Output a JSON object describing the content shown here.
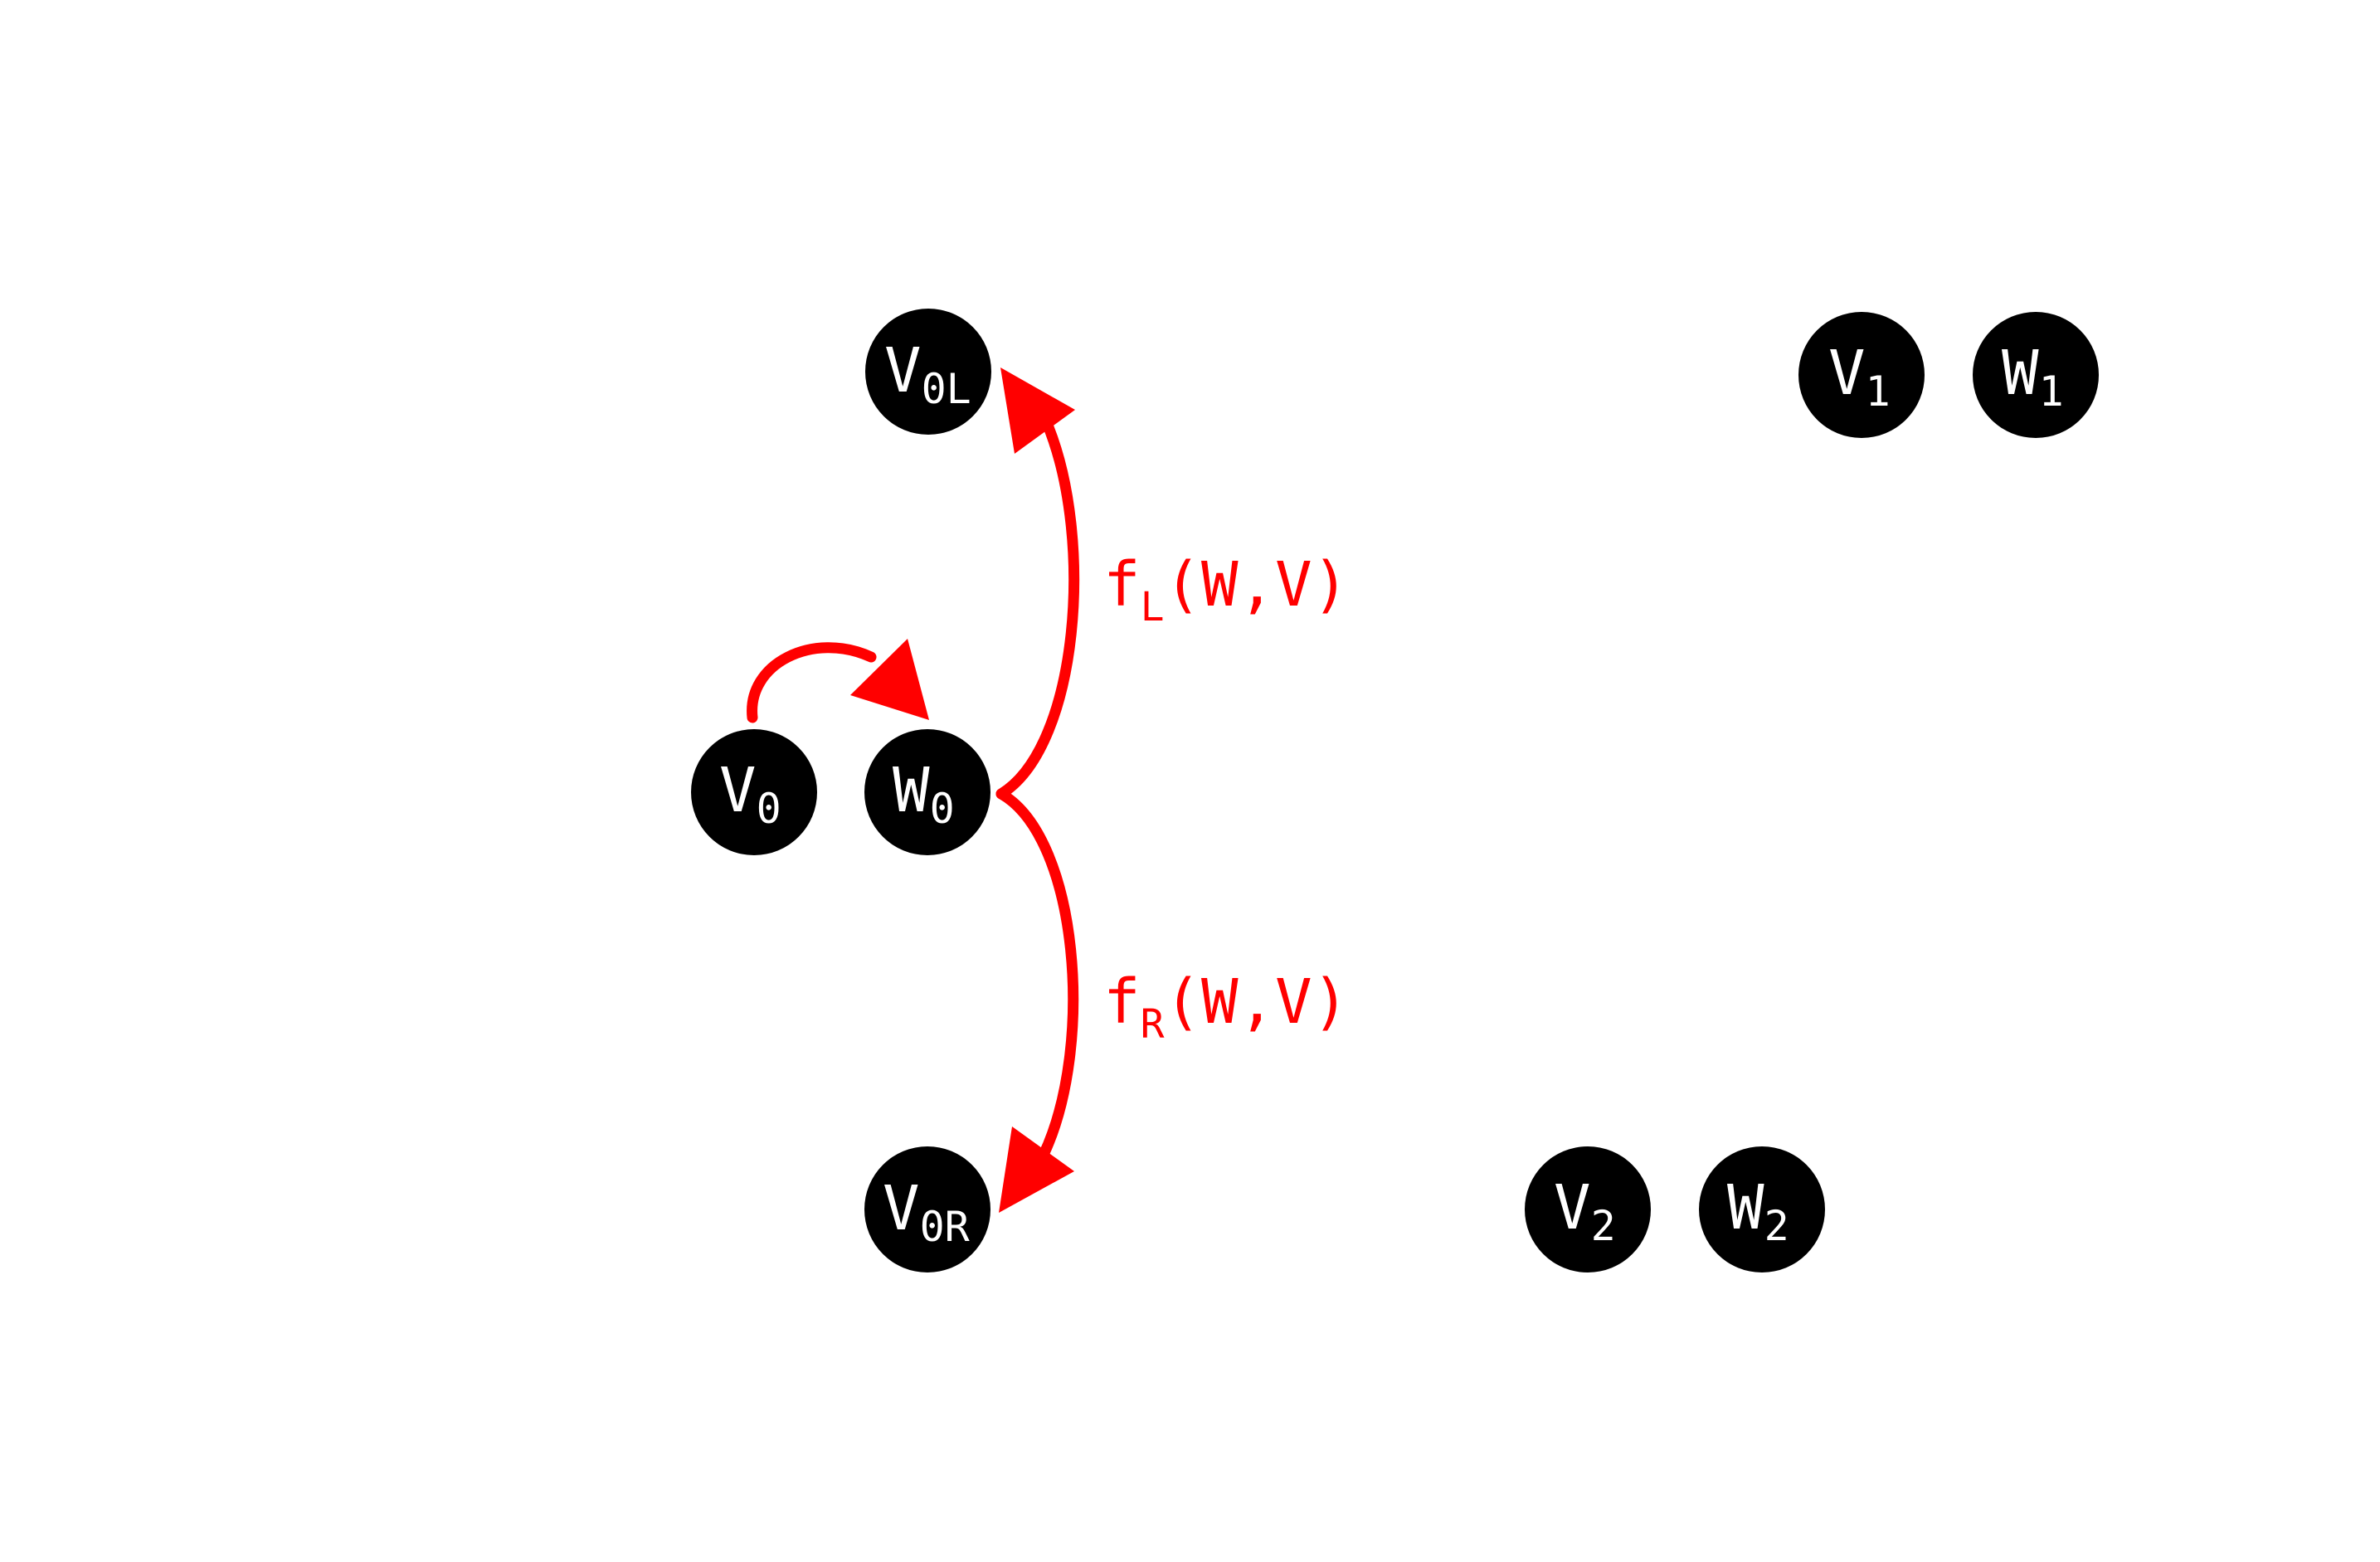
{
  "colors": {
    "background": "#ffffff",
    "node_fill": "#000000",
    "node_text": "#ffffff",
    "edge": "#ff0000"
  },
  "nodes": {
    "v0L": {
      "base": "V",
      "sub": "0L"
    },
    "v0": {
      "base": "V",
      "sub": "0"
    },
    "w0": {
      "base": "W",
      "sub": "0"
    },
    "v0R": {
      "base": "V",
      "sub": "0R"
    },
    "v1": {
      "base": "V",
      "sub": "1"
    },
    "w1": {
      "base": "W",
      "sub": "1"
    },
    "v2": {
      "base": "V",
      "sub": "2"
    },
    "w2": {
      "base": "W",
      "sub": "2"
    }
  },
  "edges": {
    "v0_to_w0": {
      "label": null
    },
    "w0_to_v0L": {
      "fn": "f",
      "sub": "L",
      "args": "(W,V)"
    },
    "w0_to_v0R": {
      "fn": "f",
      "sub": "R",
      "args": "(W,V)"
    }
  }
}
